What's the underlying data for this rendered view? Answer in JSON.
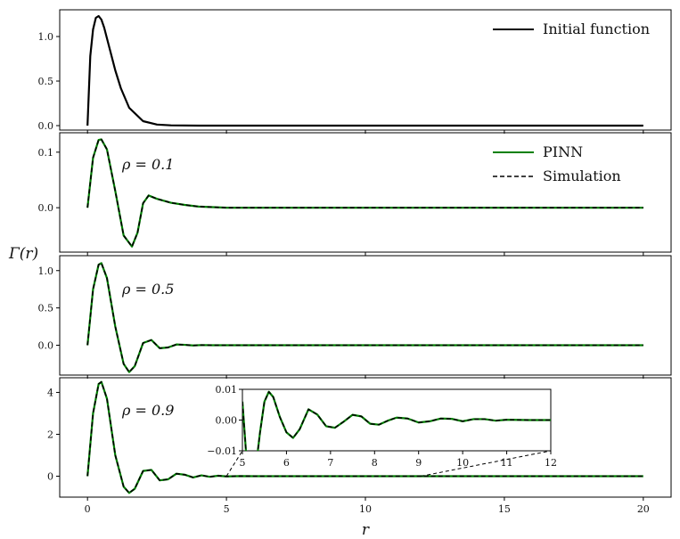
{
  "chart_data": [
    {
      "type": "line",
      "ylabel": "Γ(r)",
      "xlabel": "r",
      "xlim": [
        -1,
        21
      ],
      "ylim": [
        -0.05,
        1.3
      ],
      "yticks": [
        "0.0",
        "0.5",
        "1.0"
      ],
      "legend": "top-right",
      "series": [
        {
          "name": "Initial function",
          "color": "#000000",
          "style": "solid",
          "x": [
            0,
            0.1,
            0.2,
            0.3,
            0.4,
            0.5,
            0.6,
            0.8,
            1.0,
            1.2,
            1.5,
            2.0,
            2.5,
            3.0,
            4,
            6,
            10,
            20
          ],
          "y": [
            0,
            0.78,
            1.08,
            1.21,
            1.23,
            1.19,
            1.1,
            0.86,
            0.62,
            0.42,
            0.2,
            0.05,
            0.012,
            0.003,
            0,
            0,
            0,
            0
          ]
        }
      ]
    },
    {
      "type": "line",
      "annotation": "ρ = 0.1",
      "xlim": [
        -1,
        21
      ],
      "ylim": [
        -0.08,
        0.135
      ],
      "yticks": [
        "0.0",
        "0.1"
      ],
      "legend": "top-right",
      "series": [
        {
          "name": "PINN",
          "color": "#008000",
          "style": "solid",
          "x": [
            0,
            0.2,
            0.4,
            0.5,
            0.7,
            1.0,
            1.3,
            1.6,
            1.8,
            2.0,
            2.2,
            2.5,
            3.0,
            3.5,
            4,
            5,
            6,
            8,
            10,
            20
          ],
          "y": [
            0,
            0.09,
            0.122,
            0.123,
            0.105,
            0.03,
            -0.05,
            -0.07,
            -0.045,
            0.008,
            0.022,
            0.016,
            0.009,
            0.005,
            0.002,
            0,
            0,
            0,
            0,
            0
          ]
        },
        {
          "name": "Simulation",
          "color": "#000000",
          "style": "dashed",
          "x": [
            0,
            0.2,
            0.4,
            0.5,
            0.7,
            1.0,
            1.3,
            1.6,
            1.8,
            2.0,
            2.2,
            2.5,
            3.0,
            3.5,
            4,
            5,
            6,
            8,
            10,
            20
          ],
          "y": [
            0,
            0.09,
            0.122,
            0.123,
            0.105,
            0.03,
            -0.05,
            -0.07,
            -0.045,
            0.008,
            0.022,
            0.016,
            0.009,
            0.005,
            0.002,
            0,
            0,
            0,
            0,
            0
          ]
        }
      ]
    },
    {
      "type": "line",
      "annotation": "ρ = 0.5",
      "xlim": [
        -1,
        21
      ],
      "ylim": [
        -0.4,
        1.2
      ],
      "yticks": [
        "0.0",
        "0.5",
        "1.0"
      ],
      "series": [
        {
          "name": "PINN",
          "color": "#008000",
          "style": "solid",
          "x": [
            0,
            0.2,
            0.4,
            0.5,
            0.7,
            1.0,
            1.3,
            1.5,
            1.7,
            2.0,
            2.3,
            2.6,
            2.9,
            3.2,
            3.5,
            3.8,
            4.1,
            4.5,
            5,
            6,
            8,
            10,
            20
          ],
          "y": [
            0,
            0.75,
            1.08,
            1.1,
            0.9,
            0.25,
            -0.25,
            -0.36,
            -0.28,
            0.03,
            0.07,
            -0.04,
            -0.03,
            0.01,
            0.005,
            -0.003,
            0.002,
            0,
            0,
            0,
            0,
            0,
            0
          ]
        },
        {
          "name": "Simulation",
          "color": "#000000",
          "style": "dashed",
          "x": [
            0,
            0.2,
            0.4,
            0.5,
            0.7,
            1.0,
            1.3,
            1.5,
            1.7,
            2.0,
            2.3,
            2.6,
            2.9,
            3.2,
            3.5,
            3.8,
            4.1,
            4.5,
            5,
            6,
            8,
            10,
            20
          ],
          "y": [
            0,
            0.75,
            1.08,
            1.1,
            0.9,
            0.25,
            -0.25,
            -0.36,
            -0.28,
            0.03,
            0.07,
            -0.04,
            -0.03,
            0.01,
            0.005,
            -0.003,
            0.002,
            0,
            0,
            0,
            0,
            0,
            0
          ]
        }
      ]
    },
    {
      "type": "line",
      "annotation": "ρ = 0.9",
      "xlim": [
        -1,
        21
      ],
      "ylim": [
        -1.0,
        4.7
      ],
      "yticks": [
        "0",
        "2",
        "4"
      ],
      "xticks": [
        "0",
        "5",
        "10",
        "15",
        "20"
      ],
      "series": [
        {
          "name": "PINN",
          "color": "#008000",
          "style": "solid",
          "x": [
            0,
            0.2,
            0.4,
            0.5,
            0.7,
            1.0,
            1.3,
            1.5,
            1.7,
            2.0,
            2.3,
            2.6,
            2.9,
            3.2,
            3.5,
            3.8,
            4.1,
            4.4,
            4.7,
            5.0,
            5.5,
            6,
            8,
            10,
            20
          ],
          "y": [
            0,
            3.0,
            4.4,
            4.5,
            3.7,
            1.0,
            -0.5,
            -0.8,
            -0.6,
            0.25,
            0.3,
            -0.2,
            -0.15,
            0.12,
            0.07,
            -0.06,
            0.04,
            -0.03,
            0.02,
            -0.01,
            0.005,
            0,
            0,
            0,
            0
          ]
        },
        {
          "name": "Simulation",
          "color": "#000000",
          "style": "dashed",
          "x": [
            0,
            0.2,
            0.4,
            0.5,
            0.7,
            1.0,
            1.3,
            1.5,
            1.7,
            2.0,
            2.3,
            2.6,
            2.9,
            3.2,
            3.5,
            3.8,
            4.1,
            4.4,
            4.7,
            5.0,
            5.5,
            6,
            8,
            10,
            20
          ],
          "y": [
            0,
            3.0,
            4.4,
            4.5,
            3.7,
            1.0,
            -0.5,
            -0.8,
            -0.6,
            0.25,
            0.3,
            -0.2,
            -0.15,
            0.12,
            0.07,
            -0.06,
            0.04,
            -0.03,
            0.02,
            -0.01,
            0.005,
            0,
            0,
            0,
            0
          ]
        }
      ],
      "inset": {
        "xlim": [
          5,
          12
        ],
        "ylim": [
          -0.01,
          0.01
        ],
        "xticks": [
          "5",
          "6",
          "7",
          "8",
          "9",
          "10",
          "11",
          "12"
        ],
        "yticks": [
          "−0.01",
          "0.00",
          "0.01"
        ],
        "series": [
          {
            "name": "PINN",
            "color": "#008000",
            "style": "solid",
            "x": [
              5.0,
              5.1,
              5.2,
              5.3,
              5.4,
              5.5,
              5.6,
              5.7,
              5.85,
              6.0,
              6.15,
              6.3,
              6.5,
              6.7,
              6.9,
              7.1,
              7.3,
              7.5,
              7.7,
              7.9,
              8.1,
              8.3,
              8.5,
              8.75,
              9.0,
              9.25,
              9.5,
              9.75,
              10.0,
              10.25,
              10.5,
              10.75,
              11.0,
              11.5,
              12.0
            ],
            "y": [
              0.006,
              -0.014,
              -0.02,
              -0.016,
              -0.004,
              0.006,
              0.0092,
              0.0075,
              0.001,
              -0.004,
              -0.0058,
              -0.003,
              0.0035,
              0.0018,
              -0.002,
              -0.0025,
              -0.0005,
              0.0017,
              0.0012,
              -0.0012,
              -0.0015,
              -0.0002,
              0.0008,
              0.0005,
              -0.0008,
              -0.0004,
              0.0005,
              0.0004,
              -0.0004,
              0.0003,
              0.0003,
              -0.0002,
              0.0001,
              0,
              0
            ]
          },
          {
            "name": "Simulation",
            "color": "#000000",
            "style": "dashed",
            "x": [
              5.0,
              5.1,
              5.2,
              5.3,
              5.4,
              5.5,
              5.6,
              5.7,
              5.85,
              6.0,
              6.15,
              6.3,
              6.5,
              6.7,
              6.9,
              7.1,
              7.3,
              7.5,
              7.7,
              7.9,
              8.1,
              8.3,
              8.5,
              8.75,
              9.0,
              9.25,
              9.5,
              9.75,
              10.0,
              10.25,
              10.5,
              10.75,
              11.0,
              11.5,
              12.0
            ],
            "y": [
              0.006,
              -0.014,
              -0.02,
              -0.016,
              -0.004,
              0.006,
              0.0092,
              0.0075,
              0.001,
              -0.004,
              -0.0058,
              -0.003,
              0.0035,
              0.0018,
              -0.002,
              -0.0025,
              -0.0005,
              0.0017,
              0.0012,
              -0.0012,
              -0.0015,
              -0.0002,
              0.0008,
              0.0005,
              -0.0008,
              -0.0004,
              0.0005,
              0.0004,
              -0.0004,
              0.0003,
              0.0003,
              -0.0002,
              0.0001,
              0,
              0
            ]
          }
        ]
      }
    }
  ]
}
